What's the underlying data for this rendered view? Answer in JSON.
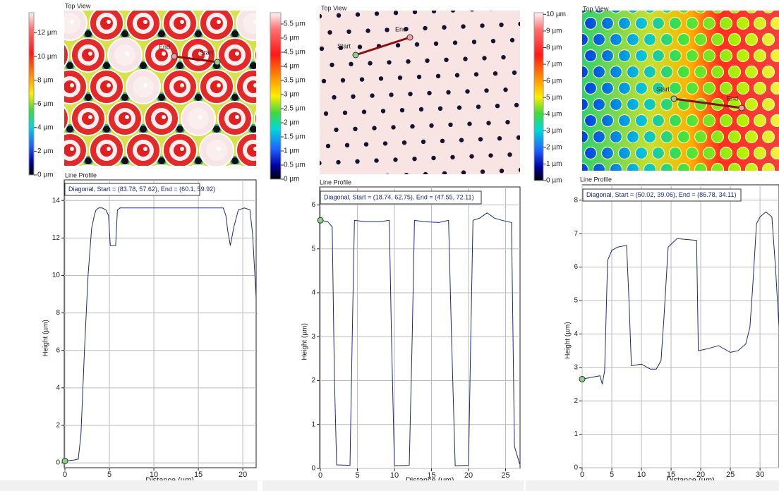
{
  "chart_data": [
    {
      "type": "line",
      "title": "Line Profile",
      "annotation": "Diagonal, Start = (83.78, 57.62), End = (60.1, 59.92)",
      "xlabel": "Distance (µm)",
      "ylabel": "Height (µm)",
      "color": "#1f2a6e",
      "grid": true,
      "x": [
        0,
        0.5,
        1,
        1.5,
        1.8,
        2.2,
        2.6,
        3,
        3.3,
        3.5,
        3.8,
        4.2,
        4.6,
        4.9,
        5.1,
        5.7,
        5.9,
        6.2,
        8,
        10,
        12,
        14,
        16,
        17.5,
        17.8,
        18.1,
        18.3,
        18.6,
        19,
        19.5,
        20.2,
        20.8,
        21.1,
        21.5
      ],
      "values": [
        0.1,
        0.12,
        0.15,
        0.2,
        1.5,
        6,
        10,
        12.5,
        13.2,
        13.5,
        13.6,
        13.6,
        13.5,
        13.2,
        11.6,
        11.6,
        13.5,
        13.6,
        13.6,
        13.6,
        13.6,
        13.6,
        13.6,
        13.6,
        13.6,
        13.2,
        12.4,
        11.6,
        12.6,
        13.5,
        13.6,
        13.5,
        12.2,
        8.8
      ],
      "xlim": [
        -0.08,
        21.5
      ],
      "ylim": [
        -0.26,
        15.1
      ],
      "xticks": [
        0,
        5,
        10,
        15,
        20
      ],
      "yticks": [
        0,
        2,
        4,
        6,
        8,
        10,
        12,
        14
      ]
    },
    {
      "type": "line",
      "title": "Line Profile",
      "annotation": "Diagonal, Start = (18.74, 62.75), End = (47.55, 72.11)",
      "xlabel": "Distance (µm)",
      "ylabel": "Height (µm)",
      "color": "#1f2a6e",
      "grid": true,
      "x": [
        0,
        1,
        1.6,
        1.9,
        2.2,
        4,
        4.3,
        4.6,
        6,
        8,
        9.3,
        9.6,
        10,
        12,
        12.4,
        12.7,
        14,
        16,
        17.3,
        17.7,
        18.2,
        20,
        20.3,
        20.6,
        21.5,
        22.5,
        23.5,
        24.5,
        25.8,
        26.2,
        26.9
      ],
      "values": [
        5.65,
        5.62,
        5.5,
        2,
        0.08,
        0.07,
        3,
        5.65,
        5.62,
        5.62,
        5.65,
        3,
        0.06,
        0.07,
        3,
        5.65,
        5.62,
        5.6,
        5.65,
        3,
        0.06,
        0.07,
        3,
        5.65,
        5.7,
        5.82,
        5.7,
        5.65,
        5.6,
        0.5,
        0.1
      ],
      "xlim": [
        -0.1,
        26.95
      ],
      "ylim": [
        0,
        6.41
      ],
      "xticks": [
        0,
        5,
        10,
        15,
        20,
        25
      ],
      "yticks": [
        0,
        1,
        2,
        3,
        4,
        5,
        6
      ]
    },
    {
      "type": "line",
      "title": "Line Profile",
      "annotation": "Diagonal, Start = (50.02, 39.06), End = (86.78, 34.11)",
      "xlabel": "Distance (µm)",
      "ylabel": "Height (µm)",
      "color": "#1f2a6e",
      "grid": true,
      "x": [
        0,
        1.5,
        3,
        3.4,
        3.8,
        4.3,
        5,
        6,
        7.5,
        7.9,
        8.3,
        10,
        11.5,
        12.5,
        13.3,
        13.8,
        14.5,
        16,
        18,
        19.3,
        19.6,
        21,
        23,
        25,
        26.3,
        27.6,
        28.3,
        28.8,
        29.4,
        30,
        31,
        32,
        32.6,
        33.2
      ],
      "values": [
        2.65,
        2.7,
        2.75,
        2.5,
        2.9,
        6.2,
        6.5,
        6.6,
        6.65,
        5,
        3.05,
        3.1,
        2.95,
        2.95,
        3.2,
        4.5,
        6.6,
        6.85,
        6.82,
        6.8,
        3.5,
        3.55,
        3.65,
        3.45,
        3.5,
        3.7,
        4.2,
        5.5,
        7.3,
        7.5,
        7.65,
        7.5,
        6,
        4.2
      ],
      "xlim": [
        0,
        33.2
      ],
      "ylim": [
        0,
        8.46
      ],
      "xticks": [
        0,
        5,
        10,
        15,
        20,
        25,
        30
      ],
      "yticks": [
        0,
        1,
        2,
        3,
        4,
        5,
        6,
        7,
        8
      ]
    }
  ],
  "panels": [
    {
      "top_view_title": "Top View",
      "start_label": "Start",
      "end_label": "End",
      "colorbar": {
        "lim": [
          0,
          13.7
        ],
        "ticks": [
          {
            "value": 0,
            "label": "0 µm"
          },
          {
            "value": 2,
            "label": "2 µm"
          },
          {
            "value": 4,
            "label": "4 µm"
          },
          {
            "value": 6,
            "label": "6 µm"
          },
          {
            "value": 8,
            "label": "8 µm"
          },
          {
            "value": 10,
            "label": "10 µm"
          },
          {
            "value": 12,
            "label": "12 µm"
          }
        ]
      }
    },
    {
      "top_view_title": "Top View",
      "start_label": "Start",
      "end_label": "End",
      "colorbar": {
        "lim": [
          0,
          5.9
        ],
        "ticks": [
          {
            "value": 0,
            "label": "0 µm"
          },
          {
            "value": 0.5,
            "label": "0.5 µm"
          },
          {
            "value": 1,
            "label": "1 µm"
          },
          {
            "value": 1.5,
            "label": "1.5 µm"
          },
          {
            "value": 2,
            "label": "2 µm"
          },
          {
            "value": 2.5,
            "label": "2.5 µm"
          },
          {
            "value": 3,
            "label": "3 µm"
          },
          {
            "value": 3.5,
            "label": "3.5 µm"
          },
          {
            "value": 4,
            "label": "4 µm"
          },
          {
            "value": 4.5,
            "label": "4.5 µm"
          },
          {
            "value": 5,
            "label": "5 µm"
          },
          {
            "value": 5.5,
            "label": "5.5 µm"
          }
        ]
      }
    },
    {
      "top_view_title": "Top View",
      "start_label": "Start",
      "end_label": "End",
      "colorbar": {
        "lim": [
          0,
          10.1
        ],
        "ticks": [
          {
            "value": 0,
            "label": "0 µm"
          },
          {
            "value": 1,
            "label": "1 µm"
          },
          {
            "value": 2,
            "label": "2 µm"
          },
          {
            "value": 3,
            "label": "3 µm"
          },
          {
            "value": 4,
            "label": "4 µm"
          },
          {
            "value": 5,
            "label": "5 µm"
          },
          {
            "value": 6,
            "label": "6 µm"
          },
          {
            "value": 7,
            "label": "7 µm"
          },
          {
            "value": 8,
            "label": "8 µm"
          },
          {
            "value": 9,
            "label": "9 µm"
          },
          {
            "value": 10,
            "label": "10 µm"
          }
        ]
      }
    }
  ]
}
